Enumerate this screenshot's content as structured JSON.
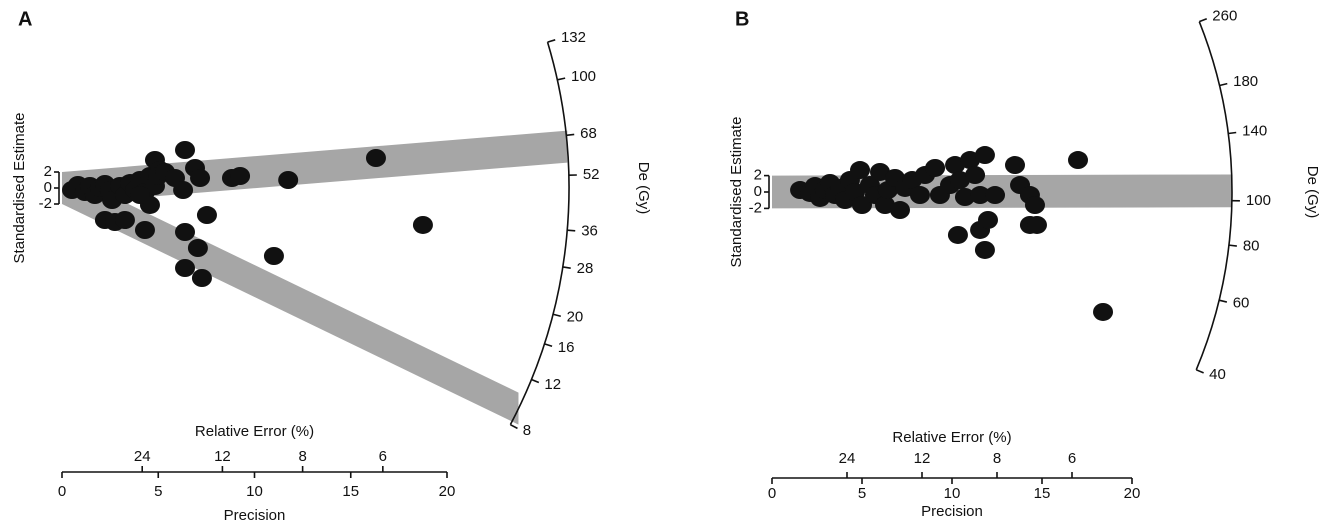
{
  "chart_data": [
    {
      "type": "radial",
      "panel_label": "A",
      "x_label": "Precision",
      "x2_label": "Relative Error (%)",
      "y_label": "Standardised Estimate",
      "z_label": "De (Gy)",
      "color": "#111111",
      "band_color": "#a6a6a6",
      "xlim": [
        0,
        20
      ],
      "xticks": [
        0,
        5,
        10,
        15,
        20
      ],
      "x2ticks": [
        24,
        12,
        8,
        6
      ],
      "yticks": [
        2,
        0,
        -2
      ],
      "zlim": [
        8,
        132
      ],
      "zlog": true,
      "zticks": [
        132,
        100,
        68,
        52,
        36,
        28,
        20,
        16,
        12,
        8
      ],
      "bands": [
        63,
        9.3
      ],
      "x": [
        0.52,
        0.83,
        1.19,
        1.45,
        1.71,
        1.97,
        2.23,
        2.49,
        2.6,
        3.01,
        3.27,
        3.53,
        3.79,
        4.05,
        4.31,
        4.57,
        4.83,
        4.83,
        5.09,
        4.57,
        2.23,
        2.75,
        3.27,
        4.05,
        4.31,
        4.99,
        5.35,
        5.87,
        6.39,
        6.29,
        6.39,
        6.91,
        7.17,
        7.06,
        6.39,
        7.27,
        7.53,
        8.83,
        9.25,
        11.01,
        11.75,
        16.31,
        18.75
      ],
      "y": [
        -0.25,
        0.38,
        -0.5,
        0.25,
        -0.88,
        0,
        0.5,
        -0.25,
        -1.5,
        0.25,
        -0.88,
        0.62,
        -0.25,
        1.0,
        -0.5,
        1.5,
        0.25,
        3.5,
        2.25,
        -2.12,
        -4.0,
        -4.25,
        -4.0,
        -0.88,
        -5.25,
        1.5,
        2.0,
        1.25,
        4.75,
        -0.25,
        -5.5,
        2.5,
        1.25,
        -7.5,
        -10,
        -11.25,
        -3.38,
        1.25,
        1.5,
        -8.5,
        1.0,
        3.75,
        -4.62
      ]
    },
    {
      "type": "radial",
      "panel_label": "B",
      "x_label": "Precision",
      "x2_label": "Relative Error (%)",
      "y_label": "Standardised Estimate",
      "z_label": "De (Gy)",
      "color": "#111111",
      "band_color": "#a6a6a6",
      "xlim": [
        0,
        20
      ],
      "xticks": [
        0,
        5,
        10,
        15,
        20
      ],
      "x2ticks": [
        24,
        12,
        8,
        6
      ],
      "yticks": [
        2,
        0,
        -2
      ],
      "zlim": [
        40,
        260
      ],
      "zlog": true,
      "zticks": [
        260,
        180,
        140,
        100,
        80,
        60,
        40
      ],
      "bands": [
        105
      ],
      "x": [
        1.56,
        2.11,
        2.39,
        2.67,
        2.94,
        3.22,
        3.5,
        3.78,
        4.06,
        4.33,
        4.61,
        4.89,
        5.0,
        5.44,
        5.72,
        6.0,
        6.28,
        6.44,
        6.83,
        7.11,
        7.39,
        7.78,
        8.22,
        8.5,
        9.06,
        9.33,
        9.89,
        10.17,
        10.33,
        10.44,
        10.72,
        11.0,
        11.28,
        11.56,
        11.56,
        11.83,
        12.0,
        11.83,
        12.39,
        13.5,
        13.78,
        14.33,
        14.61,
        14.33,
        14.72,
        17.0,
        18.39
      ],
      "y": [
        0.24,
        -0.12,
        0.73,
        -0.73,
        0.24,
        1.1,
        -0.37,
        0.49,
        -0.98,
        1.46,
        0,
        2.68,
        -1.59,
        0.85,
        -0.37,
        2.44,
        -1.59,
        0.24,
        1.71,
        -2.2,
        0.49,
        1.46,
        -0.37,
        2.07,
        2.93,
        -0.37,
        0.85,
        3.29,
        -5.24,
        1.46,
        -0.61,
        3.9,
        2.07,
        -0.37,
        -4.63,
        4.51,
        -3.41,
        -7.07,
        -0.37,
        3.29,
        0.85,
        -0.37,
        -1.59,
        -4.02,
        -4.02,
        3.9,
        -14.63
      ]
    }
  ]
}
